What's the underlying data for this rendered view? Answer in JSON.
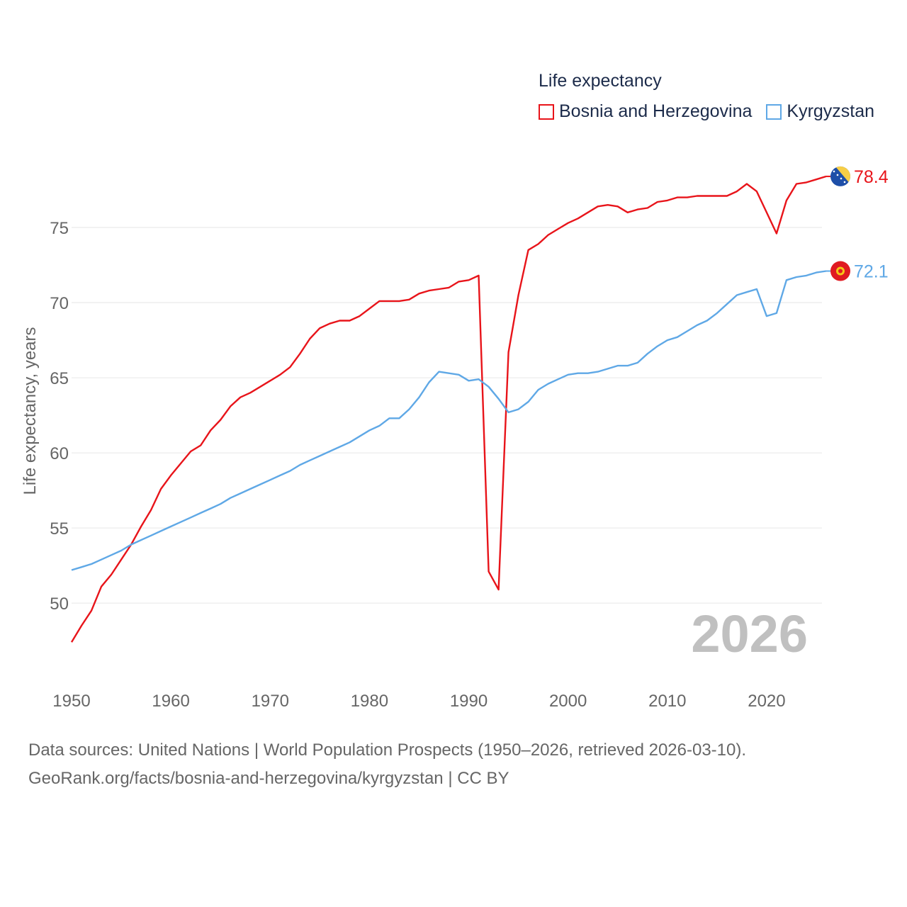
{
  "chart_data": {
    "type": "line",
    "ylabel": "Life expectancy, years",
    "xlabel": "",
    "xlim": [
      1950,
      2026
    ],
    "ylim": [
      46,
      80
    ],
    "x_ticks": [
      1950,
      1960,
      1970,
      1980,
      1990,
      2000,
      2010,
      2020
    ],
    "y_ticks": [
      50,
      55,
      60,
      65,
      70,
      75
    ],
    "grid": true,
    "legend_title": "Life expectancy",
    "legend_position": "top-right",
    "year_watermark": "2026",
    "x": [
      1950,
      1951,
      1952,
      1953,
      1954,
      1955,
      1956,
      1957,
      1958,
      1959,
      1960,
      1961,
      1962,
      1963,
      1964,
      1965,
      1966,
      1967,
      1968,
      1969,
      1970,
      1971,
      1972,
      1973,
      1974,
      1975,
      1976,
      1977,
      1978,
      1979,
      1980,
      1981,
      1982,
      1983,
      1984,
      1985,
      1986,
      1987,
      1988,
      1989,
      1990,
      1991,
      1992,
      1993,
      1994,
      1995,
      1996,
      1997,
      1998,
      1999,
      2000,
      2001,
      2002,
      2003,
      2004,
      2005,
      2006,
      2007,
      2008,
      2009,
      2010,
      2011,
      2012,
      2013,
      2014,
      2015,
      2016,
      2017,
      2018,
      2019,
      2020,
      2021,
      2022,
      2023,
      2024,
      2025,
      2026
    ],
    "series": [
      {
        "name": "Bosnia and Herzegovina",
        "color": "#e8141a",
        "end_label": "78.4",
        "values": [
          47.4,
          48.5,
          49.5,
          51.1,
          51.9,
          52.9,
          53.9,
          55.1,
          56.2,
          57.6,
          58.5,
          59.3,
          60.1,
          60.5,
          61.5,
          62.2,
          63.1,
          63.7,
          64.0,
          64.4,
          64.8,
          65.2,
          65.7,
          66.6,
          67.6,
          68.3,
          68.6,
          68.8,
          68.8,
          69.1,
          69.6,
          70.1,
          70.1,
          70.1,
          70.2,
          70.6,
          70.8,
          70.9,
          71.0,
          71.4,
          71.5,
          71.8,
          52.1,
          50.9,
          66.7,
          70.5,
          73.5,
          73.9,
          74.5,
          74.9,
          75.3,
          75.6,
          76.0,
          76.4,
          76.5,
          76.4,
          76.0,
          76.2,
          76.3,
          76.7,
          76.8,
          77.0,
          77.0,
          77.1,
          77.1,
          77.1,
          77.1,
          77.4,
          77.9,
          77.4,
          76.0,
          74.6,
          76.8,
          77.9,
          78.0,
          78.2,
          78.4
        ]
      },
      {
        "name": "Kyrgyzstan",
        "color": "#5fa8e6",
        "end_label": "72.1",
        "values": [
          52.2,
          52.4,
          52.6,
          52.9,
          53.2,
          53.5,
          53.9,
          54.2,
          54.5,
          54.8,
          55.1,
          55.4,
          55.7,
          56.0,
          56.3,
          56.6,
          57.0,
          57.3,
          57.6,
          57.9,
          58.2,
          58.5,
          58.8,
          59.2,
          59.5,
          59.8,
          60.1,
          60.4,
          60.7,
          61.1,
          61.5,
          61.8,
          62.3,
          62.3,
          62.9,
          63.7,
          64.7,
          65.4,
          65.3,
          65.2,
          64.8,
          64.9,
          64.4,
          63.6,
          62.7,
          62.9,
          63.4,
          64.2,
          64.6,
          64.9,
          65.2,
          65.3,
          65.3,
          65.4,
          65.6,
          65.8,
          65.8,
          66.0,
          66.6,
          67.1,
          67.5,
          67.7,
          68.1,
          68.5,
          68.8,
          69.3,
          69.9,
          70.5,
          70.7,
          70.9,
          69.1,
          69.3,
          71.5,
          71.7,
          71.8,
          72.0,
          72.1
        ]
      }
    ]
  },
  "footer": {
    "line1": "Data sources: United Nations | World Population Prospects (1950–2026, retrieved 2026-03-10).",
    "line2": "GeoRank.org/facts/bosnia-and-herzegovina/kyrgyzstan | CC BY"
  }
}
